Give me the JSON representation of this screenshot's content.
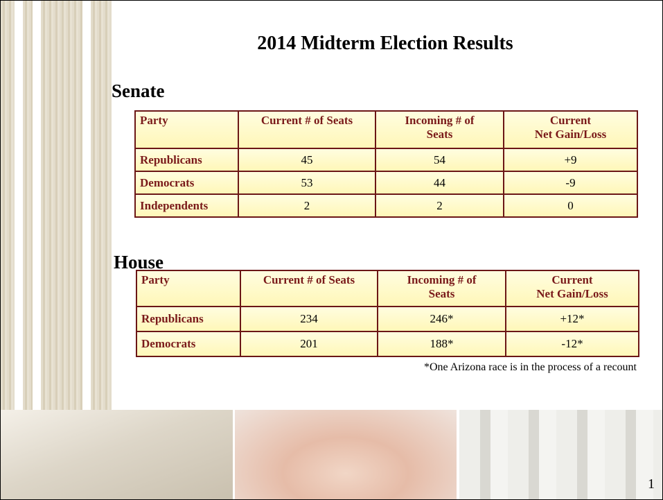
{
  "title": "2014 Midterm Election Results",
  "senate": {
    "heading": "Senate",
    "header": [
      [
        "Party"
      ],
      [
        "Current # of Seats"
      ],
      [
        "Incoming # of",
        "Seats"
      ],
      [
        "Current",
        "Net Gain/Loss"
      ]
    ],
    "rows": [
      [
        "Republicans",
        "45",
        "54",
        "+9"
      ],
      [
        "Democrats",
        "53",
        "44",
        "-9"
      ],
      [
        "Independents",
        "2",
        "2",
        "0"
      ]
    ]
  },
  "house": {
    "heading": "House",
    "header": [
      [
        "Party"
      ],
      [
        "Current # of Seats"
      ],
      [
        "Incoming # of",
        "Seats"
      ],
      [
        "Current",
        "Net Gain/Loss"
      ]
    ],
    "rows": [
      [
        "Republicans",
        "234",
        "246*",
        "+12*"
      ],
      [
        "Democrats",
        "201",
        "188*",
        "-12*"
      ]
    ]
  },
  "footnote": "*One Arizona race is in the process of a recount",
  "page_number": "1"
}
